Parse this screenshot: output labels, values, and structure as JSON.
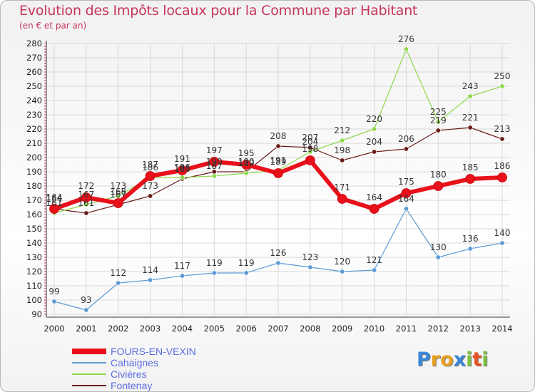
{
  "chart_data": {
    "type": "line",
    "title": "Evolution des Impôts locaux pour la Commune par Habitant",
    "subtitle": "(en € et par an)",
    "xlabel": "",
    "ylabel": "",
    "ylim": [
      90,
      280
    ],
    "yticks": [
      90,
      100,
      110,
      120,
      130,
      140,
      150,
      160,
      170,
      180,
      190,
      200,
      210,
      220,
      230,
      240,
      250,
      260,
      270,
      280
    ],
    "x": [
      "2000",
      "2001",
      "2002",
      "2003",
      "2004",
      "2005",
      "2006",
      "2007",
      "2008",
      "2009",
      "2010",
      "2011",
      "2012",
      "2013",
      "2014"
    ],
    "grid": true,
    "legend_position": "bottom-left",
    "series": [
      {
        "name": "Fontenay",
        "color": "#6b1a1a",
        "values": [
          164,
          161,
          167,
          173,
          185,
          190,
          190,
          208,
          207,
          198,
          204,
          206,
          219,
          221,
          213
        ]
      },
      {
        "name": "Civières",
        "color": "#8fd84a",
        "values": [
          161,
          167,
          173,
          186,
          186,
          187,
          189,
          191,
          204,
          212,
          220,
          276,
          225,
          243,
          250
        ]
      },
      {
        "name": "Cahaignes",
        "color": "#5b9bd5",
        "values": [
          99,
          93,
          112,
          114,
          117,
          119,
          119,
          126,
          123,
          120,
          121,
          164,
          130,
          136,
          140
        ]
      },
      {
        "name": "FOURS-EN-VEXIN",
        "color": "#e8111b",
        "values": [
          164,
          172,
          168,
          187,
          191,
          197,
          195,
          189,
          198,
          171,
          164,
          175,
          180,
          185,
          186
        ]
      }
    ],
    "legend_order": [
      "FOURS-EN-VEXIN",
      "Cahaignes",
      "Civières",
      "Fontenay"
    ]
  },
  "logo": {
    "letters": [
      "P",
      "r",
      "o",
      "x",
      "i",
      "t",
      "i"
    ],
    "colors": [
      "#3a86d8",
      "#e8a020",
      "#e8a020",
      "#3a86d8",
      "#7ac143",
      "#e85020",
      "#7ac143"
    ]
  }
}
